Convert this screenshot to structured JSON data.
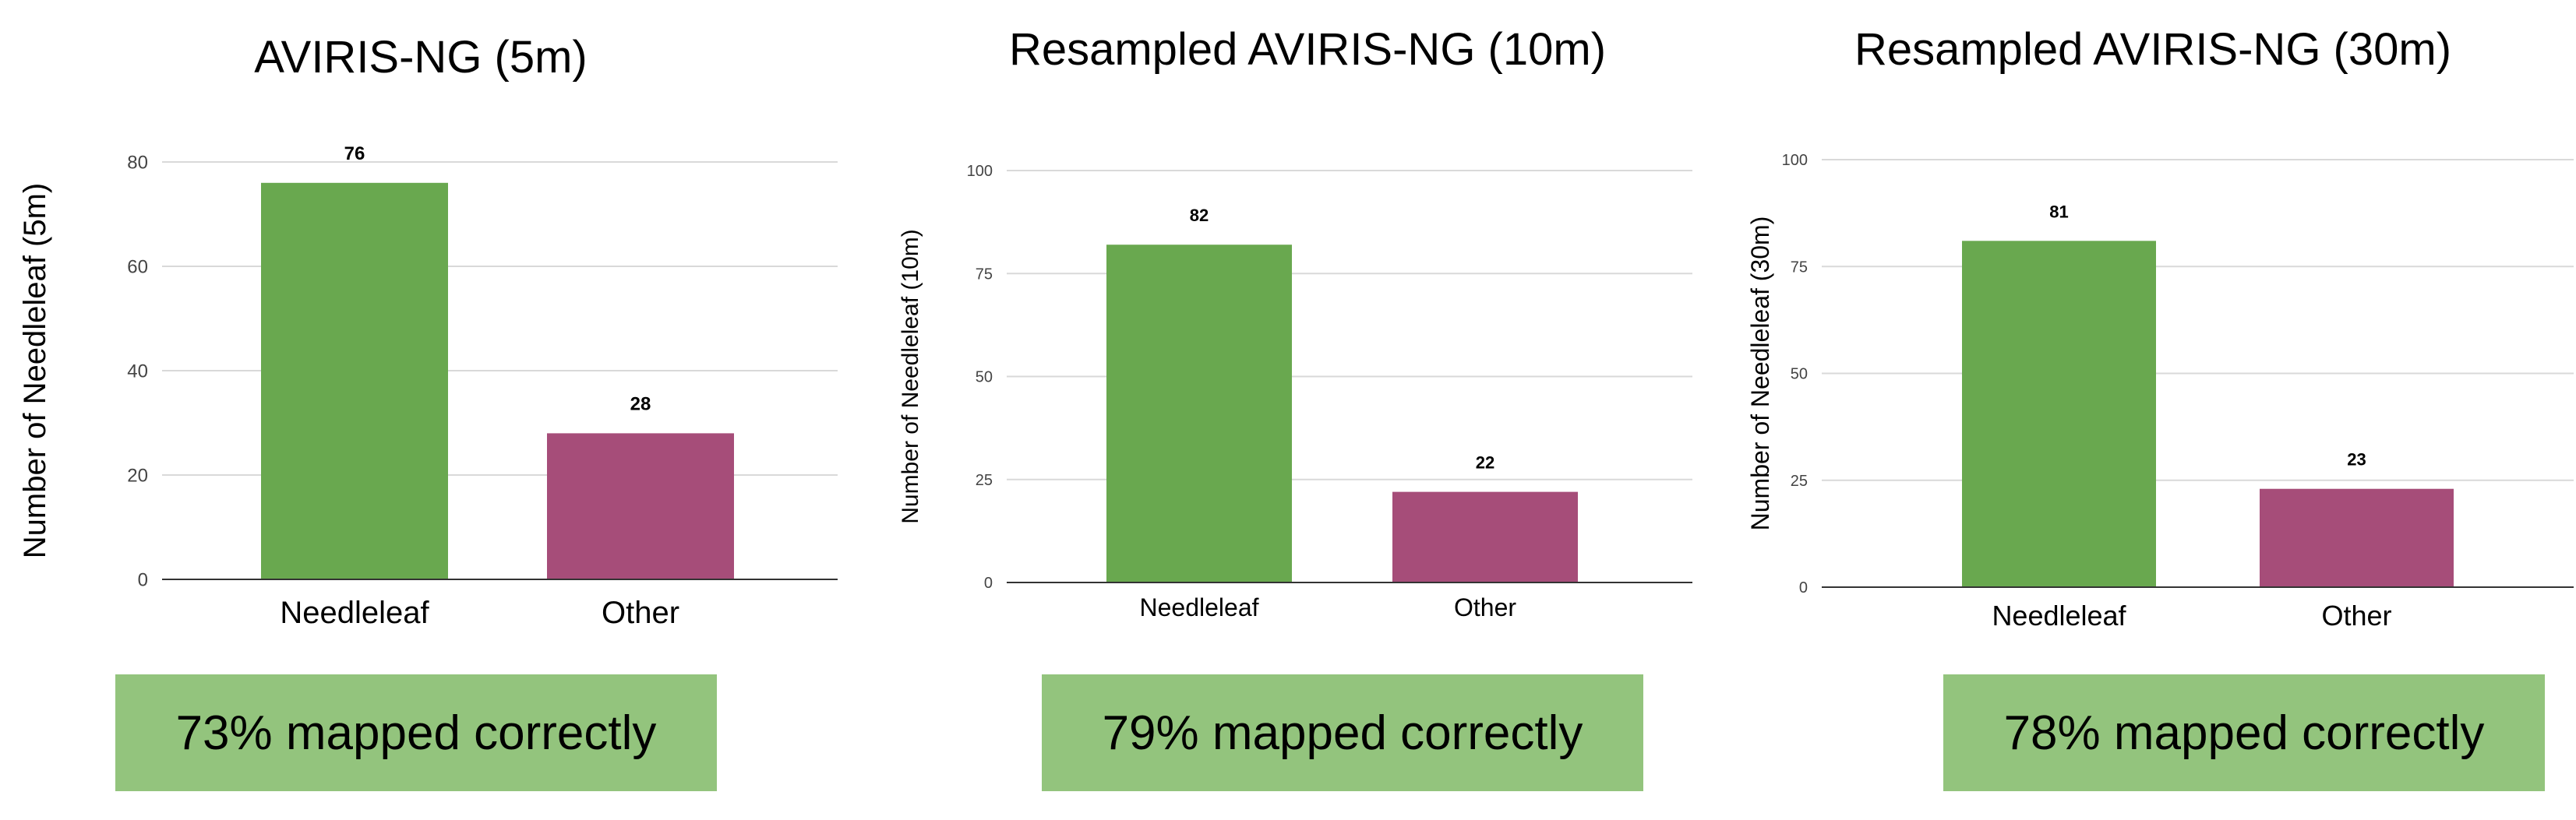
{
  "colors": {
    "needleleaf": "#69a84f",
    "other": "#a64d79",
    "accuracy_box": "#93c47d",
    "gridline": "#d9d9d9",
    "axis": "#333333",
    "tick_text": "#444444"
  },
  "chart_data": [
    {
      "type": "bar",
      "title": "AVIRIS-NG (5m)",
      "categories": [
        "Needleleaf",
        "Other"
      ],
      "values": [
        76,
        28
      ],
      "value_labels": [
        "76",
        "28"
      ],
      "ylabel": "Number of Needleleaf (5m)",
      "ylim": [
        0,
        80
      ],
      "yticks": [
        0,
        20,
        40,
        60,
        80
      ],
      "ytick_labels": [
        "0",
        "20",
        "40",
        "60",
        "80"
      ],
      "grid": true,
      "accuracy": "73% mapped correctly"
    },
    {
      "type": "bar",
      "title": "Resampled AVIRIS-NG (10m)",
      "categories": [
        "Needleleaf",
        "Other"
      ],
      "values": [
        82,
        22
      ],
      "value_labels": [
        "82",
        "22"
      ],
      "ylabel": "Number of Needleleaf (10m)",
      "ylim": [
        0,
        100
      ],
      "yticks": [
        0,
        25,
        50,
        75,
        100
      ],
      "ytick_labels": [
        "0",
        "25",
        "50",
        "75",
        "100"
      ],
      "grid": true,
      "accuracy": "79% mapped correctly"
    },
    {
      "type": "bar",
      "title": "Resampled AVIRIS-NG (30m)",
      "categories": [
        "Needleleaf",
        "Other"
      ],
      "values": [
        81,
        23
      ],
      "value_labels": [
        "81",
        "23"
      ],
      "ylabel": "Number of Needleleaf (30m)",
      "ylim": [
        0,
        100
      ],
      "yticks": [
        0,
        25,
        50,
        75,
        100
      ],
      "ytick_labels": [
        "0",
        "25",
        "50",
        "75",
        "100"
      ],
      "grid": true,
      "accuracy": "78% mapped correctly"
    }
  ]
}
